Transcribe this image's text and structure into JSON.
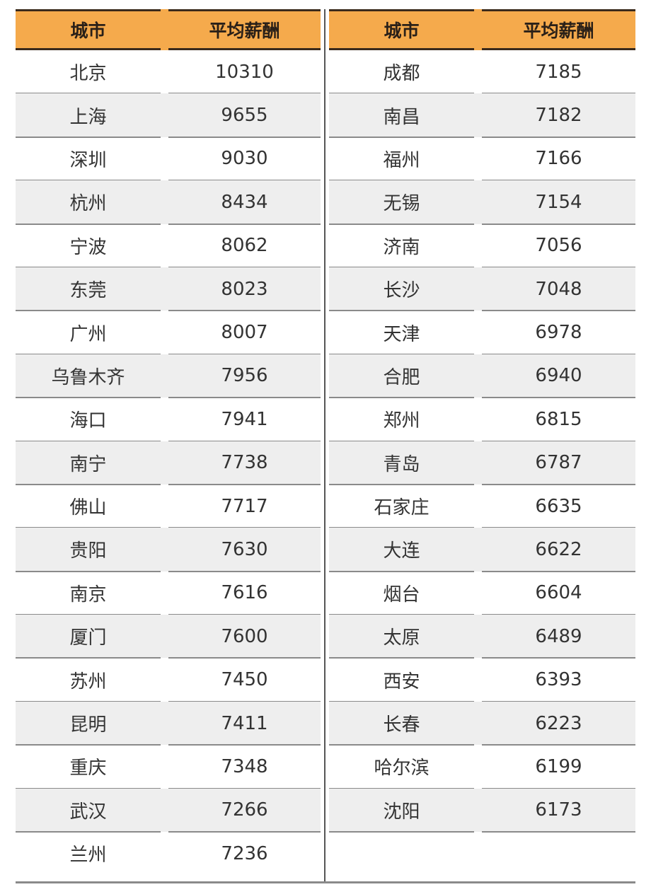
{
  "headers": {
    "city": "城市",
    "salary": "平均薪酬"
  },
  "colors": {
    "header_bg": "#f5aa4c",
    "alt_row_bg": "#eeeeee"
  },
  "left_rows": [
    {
      "city": "北京",
      "salary": "10310"
    },
    {
      "city": "上海",
      "salary": "9655"
    },
    {
      "city": "深圳",
      "salary": "9030"
    },
    {
      "city": "杭州",
      "salary": "8434"
    },
    {
      "city": "宁波",
      "salary": "8062"
    },
    {
      "city": "东莞",
      "salary": "8023"
    },
    {
      "city": "广州",
      "salary": "8007"
    },
    {
      "city": "乌鲁木齐",
      "salary": "7956"
    },
    {
      "city": "海口",
      "salary": "7941"
    },
    {
      "city": "南宁",
      "salary": "7738"
    },
    {
      "city": "佛山",
      "salary": "7717"
    },
    {
      "city": "贵阳",
      "salary": "7630"
    },
    {
      "city": "南京",
      "salary": "7616"
    },
    {
      "city": "厦门",
      "salary": "7600"
    },
    {
      "city": "苏州",
      "salary": "7450"
    },
    {
      "city": "昆明",
      "salary": "7411"
    },
    {
      "city": "重庆",
      "salary": "7348"
    },
    {
      "city": "武汉",
      "salary": "7266"
    },
    {
      "city": "兰州",
      "salary": "7236"
    }
  ],
  "right_rows": [
    {
      "city": "成都",
      "salary": "7185"
    },
    {
      "city": "南昌",
      "salary": "7182"
    },
    {
      "city": "福州",
      "salary": "7166"
    },
    {
      "city": "无锡",
      "salary": "7154"
    },
    {
      "city": "济南",
      "salary": "7056"
    },
    {
      "city": "长沙",
      "salary": "7048"
    },
    {
      "city": "天津",
      "salary": "6978"
    },
    {
      "city": "合肥",
      "salary": "6940"
    },
    {
      "city": "郑州",
      "salary": "6815"
    },
    {
      "city": "青岛",
      "salary": "6787"
    },
    {
      "city": "石家庄",
      "salary": "6635"
    },
    {
      "city": "大连",
      "salary": "6622"
    },
    {
      "city": "烟台",
      "salary": "6604"
    },
    {
      "city": "太原",
      "salary": "6489"
    },
    {
      "city": "西安",
      "salary": "6393"
    },
    {
      "city": "长春",
      "salary": "6223"
    },
    {
      "city": "哈尔滨",
      "salary": "6199"
    },
    {
      "city": "沈阳",
      "salary": "6173"
    }
  ]
}
